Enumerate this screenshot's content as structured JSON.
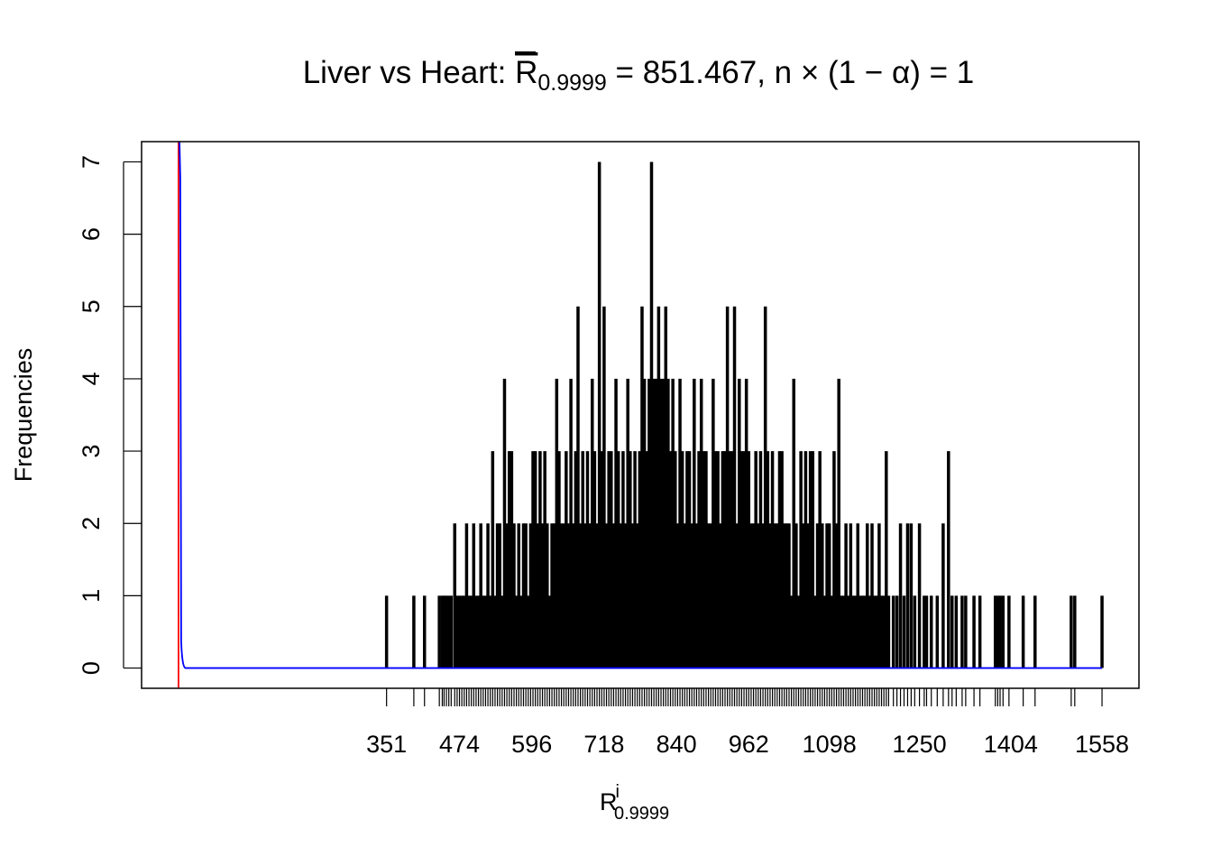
{
  "chart_data": {
    "type": "bar",
    "subtype": "spike-histogram (type h) with rug ticks",
    "title": {
      "prefix": "Liver vs Heart: ",
      "symbol": "R",
      "subscript": "0.9999",
      "suffix": " = 851.467, n × (1 − α) = 1"
    },
    "xlabel": {
      "symbol": "R",
      "superscript": "i",
      "subscript": "0.9999"
    },
    "ylabel": "Frequencies",
    "xlim": [
      -62.3,
      1620.3
    ],
    "ylim": [
      -0.28,
      7.28
    ],
    "y_ticks": [
      "0",
      "1",
      "2",
      "3",
      "4",
      "5",
      "6",
      "7"
    ],
    "x_tick_labels": [
      "351",
      "474",
      "596",
      "718",
      "840",
      "962",
      "1098",
      "1250",
      "1404",
      "1558"
    ],
    "threshold_line": {
      "x": 0,
      "color": "#ff0000"
    },
    "density_curve": {
      "color": "#0000ff",
      "peak_x": 3,
      "x_end": 1558
    },
    "spike_color": "#000000",
    "left_tail": {
      "x": [
        351,
        397,
        415,
        440,
        445,
        448,
        452,
        456,
        460,
        466,
        470,
        474,
        478
      ],
      "freq": [
        1,
        1,
        1,
        1,
        1,
        1,
        1,
        1,
        1,
        2,
        1,
        1,
        1
      ]
    },
    "dense": {
      "start": 482,
      "step": 4,
      "freq": [
        1,
        2,
        1,
        1,
        2,
        1,
        1,
        2,
        1,
        1,
        2,
        1,
        3,
        1,
        2,
        2,
        1,
        4,
        2,
        3,
        3,
        2,
        1,
        2,
        1,
        2,
        2,
        1,
        2,
        3,
        3,
        2,
        3,
        2,
        3,
        2,
        1,
        2,
        2,
        4,
        3,
        2,
        2,
        3,
        2,
        4,
        2,
        3,
        5,
        2,
        3,
        2,
        3,
        2,
        4,
        3,
        2,
        7,
        3,
        5,
        2,
        3,
        3,
        2,
        4,
        3,
        2,
        3,
        2,
        4,
        3,
        2,
        3,
        2,
        3,
        5,
        4,
        3,
        4,
        7,
        4,
        4,
        5,
        4,
        4,
        5,
        4,
        3,
        4,
        3,
        2,
        4,
        3,
        2,
        3,
        3,
        2,
        4,
        2,
        3,
        4,
        3,
        3,
        2,
        2,
        4,
        3,
        3,
        2,
        3,
        3,
        5,
        3,
        3,
        5,
        2,
        4,
        3,
        3,
        4,
        3,
        2,
        2,
        3,
        2,
        3,
        2,
        5,
        3,
        2,
        3,
        2,
        2,
        3,
        3,
        2,
        2,
        2,
        1,
        4,
        2,
        1,
        3,
        2,
        3,
        2,
        3,
        3,
        1,
        2,
        3,
        2,
        1,
        2,
        2,
        1,
        3,
        2,
        4,
        1,
        1,
        2,
        1,
        2,
        1,
        1,
        2,
        1,
        1,
        1,
        2,
        1,
        2,
        1,
        1,
        2,
        1,
        1,
        3,
        1
      ]
    },
    "right_tail": {
      "x": [
        1206,
        1212,
        1218,
        1224,
        1230,
        1236,
        1242,
        1250,
        1258,
        1262,
        1270,
        1280,
        1290,
        1299,
        1305,
        1312,
        1322,
        1328,
        1342,
        1352,
        1378,
        1382,
        1386,
        1391,
        1401,
        1425,
        1445,
        1506,
        1512,
        1558
      ],
      "freq": [
        1,
        1,
        2,
        1,
        2,
        2,
        1,
        2,
        1,
        1,
        1,
        1,
        2,
        3,
        1,
        1,
        1,
        1,
        1,
        1,
        1,
        1,
        1,
        1,
        1,
        1,
        1,
        1,
        1,
        1
      ]
    }
  }
}
